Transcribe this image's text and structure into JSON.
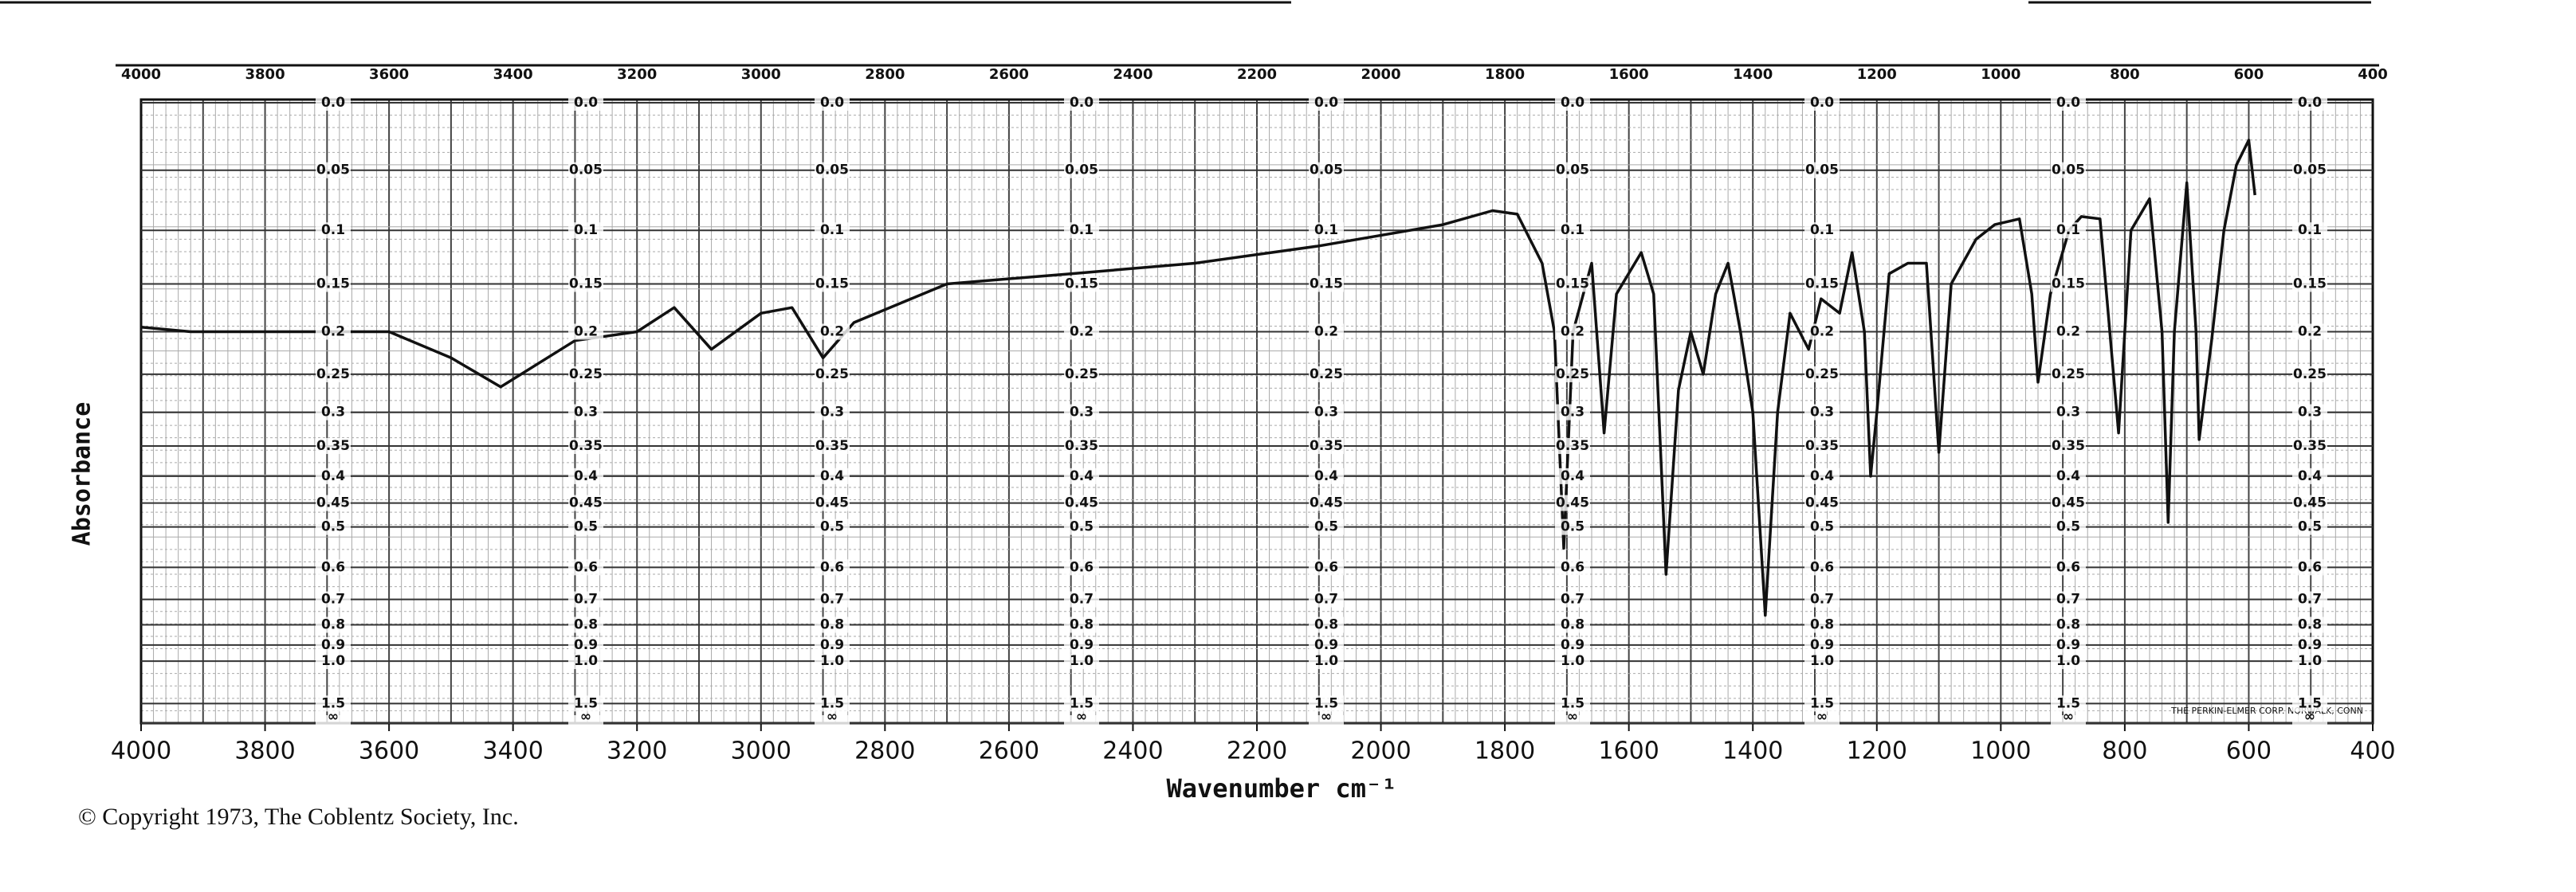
{
  "chart_data": {
    "type": "line",
    "xlabel": "Wavenumber cm⁻¹",
    "ylabel": "Absorbance",
    "note": "THE PERKIN-ELMER CORP. NORWALK, CONN",
    "copyright": "© Copyright 1973, The Coblentz Society, Inc.",
    "xlim": [
      4000,
      400
    ],
    "xticks": [
      4000,
      3800,
      3600,
      3400,
      3200,
      3000,
      2800,
      2600,
      2400,
      2200,
      2000,
      1800,
      1600,
      1400,
      1200,
      1000,
      800,
      600,
      400
    ],
    "yscale": "absorbance",
    "ylim": [
      0,
      null
    ],
    "yticks": [
      {
        "value": 0,
        "label": "0.0"
      },
      0.05,
      0.1,
      0.15,
      0.2,
      0.25,
      0.3,
      0.35,
      0.4,
      0.45,
      0.5,
      0.6,
      0.7,
      0.8,
      0.9,
      {
        "value": 1,
        "label": "1.0"
      },
      1.5,
      {
        "value": null,
        "label": "∞"
      }
    ],
    "grid": true,
    "series": [
      {
        "color": "#111111",
        "x": [
          4000,
          3920,
          3700,
          3600,
          3500,
          3420,
          3300,
          3200,
          3140,
          3080,
          3000,
          2950,
          2900,
          2850,
          2700,
          2500,
          2300,
          2100,
          1900,
          1820,
          1780,
          1740,
          1720,
          1705,
          1690,
          1660,
          1640,
          1620,
          1580,
          1560,
          1540,
          1520,
          1500,
          1480,
          1460,
          1440,
          1420,
          1400,
          1380,
          1360,
          1340,
          1310,
          1290,
          1260,
          1240,
          1220,
          1210,
          1200,
          1180,
          1150,
          1120,
          1100,
          1080,
          1040,
          1010,
          970,
          950,
          940,
          920,
          890,
          870,
          840,
          810,
          790,
          760,
          740,
          730,
          720,
          700,
          685,
          680,
          660,
          640,
          620,
          600,
          590
        ],
        "values": [
          0.195,
          0.2,
          0.2,
          0.2,
          0.23,
          0.266,
          0.21,
          0.2,
          0.174,
          0.22,
          0.18,
          0.174,
          0.23,
          0.19,
          0.15,
          0.14,
          0.13,
          0.114,
          0.095,
          0.083,
          0.086,
          0.13,
          0.2,
          0.55,
          0.2,
          0.13,
          0.33,
          0.16,
          0.12,
          0.16,
          0.62,
          0.27,
          0.2,
          0.25,
          0.16,
          0.13,
          0.2,
          0.3,
          0.76,
          0.3,
          0.18,
          0.22,
          0.165,
          0.18,
          0.12,
          0.2,
          0.4,
          0.3,
          0.14,
          0.13,
          0.13,
          0.36,
          0.15,
          0.108,
          0.095,
          0.09,
          0.16,
          0.26,
          0.16,
          0.1,
          0.088,
          0.09,
          0.33,
          0.1,
          0.073,
          0.2,
          0.49,
          0.2,
          0.06,
          0.2,
          0.34,
          0.21,
          0.1,
          0.046,
          0.027,
          0.07
        ]
      }
    ]
  }
}
